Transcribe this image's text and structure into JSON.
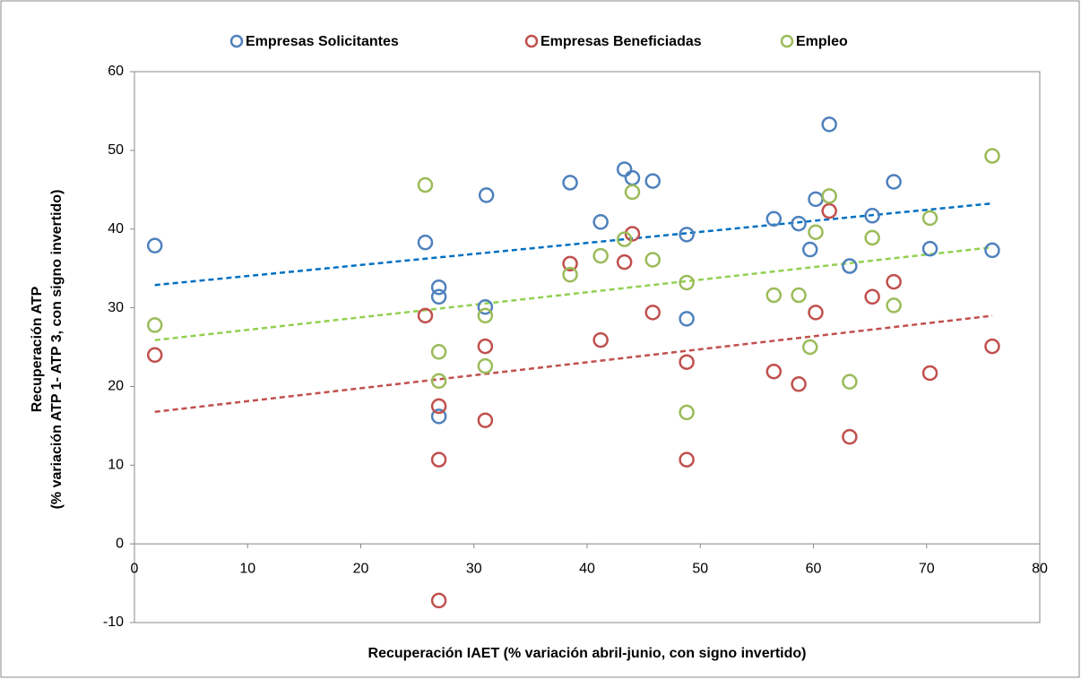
{
  "chart_data": {
    "type": "scatter",
    "xlabel": "Recuperación IAET (% variación abril-junio, con signo invertido)",
    "ylabel": [
      "Recuperación  ATP",
      "(% variación ATP 1- ATP 3, con signo invertido)"
    ],
    "xlim": [
      0,
      80
    ],
    "xticks": [
      0,
      10,
      20,
      30,
      40,
      50,
      60,
      70,
      80
    ],
    "ylim": [
      -10,
      60
    ],
    "yticks": [
      -10,
      0,
      10,
      20,
      30,
      40,
      50,
      60
    ],
    "trendline": true,
    "legend": "top",
    "series": [
      {
        "name": "Empresas Solicitantes",
        "color": "#4f81bd",
        "trend_color": "#0070c0",
        "x": [
          1.8,
          25.7,
          26.9,
          26.9,
          26.9,
          31.1,
          31.0,
          38.5,
          41.2,
          43.3,
          44.0,
          45.8,
          48.8,
          48.8,
          56.5,
          58.7,
          60.2,
          59.7,
          61.4,
          63.2,
          65.2,
          67.1,
          70.3,
          75.8
        ],
        "values": [
          37.9,
          38.3,
          32.6,
          31.4,
          16.2,
          44.3,
          30.1,
          45.9,
          40.9,
          47.6,
          46.5,
          46.1,
          39.3,
          28.6,
          41.3,
          40.7,
          43.8,
          37.4,
          53.3,
          35.3,
          41.7,
          46.0,
          37.5,
          37.3
        ]
      },
      {
        "name": "Empresas  Beneficiadas",
        "color": "#c0504d",
        "trend_color": "#c0504d",
        "x": [
          1.8,
          25.7,
          26.9,
          26.9,
          26.9,
          31.0,
          31.0,
          38.5,
          41.2,
          43.3,
          44.0,
          45.8,
          48.8,
          48.8,
          56.5,
          58.7,
          60.2,
          61.4,
          63.2,
          65.2,
          67.1,
          70.3,
          75.8
        ],
        "values": [
          24.0,
          29.0,
          17.5,
          10.7,
          -7.2,
          25.1,
          15.7,
          35.6,
          25.9,
          35.8,
          39.4,
          29.4,
          23.1,
          10.7,
          21.9,
          20.3,
          29.4,
          42.3,
          13.6,
          31.4,
          33.3,
          21.7,
          25.1
        ]
      },
      {
        "name": "Empleo",
        "color": "#9bbb59",
        "trend_color": "#92d050",
        "x": [
          1.8,
          25.7,
          26.9,
          26.9,
          31.0,
          31.0,
          38.5,
          41.2,
          43.3,
          44.0,
          45.8,
          48.8,
          48.8,
          56.5,
          58.7,
          59.7,
          60.2,
          61.4,
          63.2,
          65.2,
          67.1,
          70.3,
          75.8
        ],
        "values": [
          27.8,
          45.6,
          24.4,
          20.7,
          29.0,
          22.6,
          34.2,
          36.6,
          38.7,
          44.7,
          36.1,
          33.2,
          16.7,
          31.6,
          31.6,
          25.0,
          39.6,
          44.2,
          20.6,
          38.9,
          30.3,
          41.4,
          49.3
        ]
      }
    ]
  }
}
